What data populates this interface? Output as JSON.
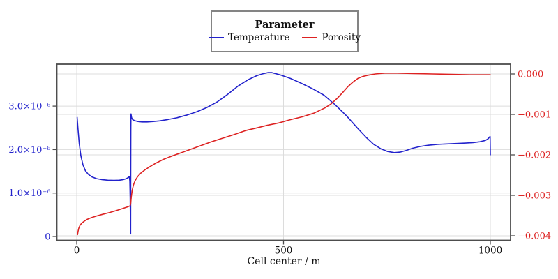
{
  "chart_data": {
    "type": "line",
    "xlabel": "Cell center / m",
    "grid": true,
    "legend": {
      "title": "Parameter",
      "position": "top-center",
      "entries": [
        {
          "label": "Temperature",
          "color": "#2222cc"
        },
        {
          "label": "Porosity",
          "color": "#dd2222"
        }
      ]
    },
    "x_axis": {
      "label": "Cell center / m",
      "range": [
        -48,
        1049
      ],
      "ticks": [
        {
          "value": 0,
          "label": "0"
        },
        {
          "value": 500,
          "label": "500"
        },
        {
          "value": 1000,
          "label": "1000"
        }
      ]
    },
    "left_axis": {
      "series": "Temperature",
      "color": "#2222cc",
      "range": [
        -1.2e-07,
        3.97e-06
      ],
      "ticks": [
        {
          "value": 0,
          "label": "0"
        },
        {
          "value": 1e-06,
          "label": "1.0×10⁻⁶"
        },
        {
          "value": 2e-06,
          "label": "2.0×10⁻⁶"
        },
        {
          "value": 3e-06,
          "label": "3.0×10⁻⁶"
        }
      ]
    },
    "right_axis": {
      "series": "Porosity",
      "color": "#dd2222",
      "range": [
        -0.00411,
        0.00024
      ],
      "ticks": [
        {
          "value": 0.0,
          "label": "0.000"
        },
        {
          "value": -0.001,
          "label": "−0.001"
        },
        {
          "value": -0.002,
          "label": "−0.002"
        },
        {
          "value": -0.003,
          "label": "−0.003"
        },
        {
          "value": -0.004,
          "label": "−0.004"
        }
      ]
    },
    "series": [
      {
        "name": "Temperature",
        "axis": "left",
        "color": "#2222cc",
        "points": [
          [
            1,
            2.74e-06
          ],
          [
            3,
            2.48e-06
          ],
          [
            6,
            2.14e-06
          ],
          [
            10,
            1.86e-06
          ],
          [
            15,
            1.65e-06
          ],
          [
            21,
            1.51e-06
          ],
          [
            28,
            1.43e-06
          ],
          [
            37,
            1.37e-06
          ],
          [
            48,
            1.33e-06
          ],
          [
            60,
            1.31e-06
          ],
          [
            75,
            1.295e-06
          ],
          [
            90,
            1.29e-06
          ],
          [
            103,
            1.295e-06
          ],
          [
            113,
            1.31e-06
          ],
          [
            120,
            1.33e-06
          ],
          [
            125,
            1.36e-06
          ],
          [
            127,
            1.375e-06
          ],
          [
            128.3,
            1.28e-06
          ],
          [
            129.2,
            9e-07
          ],
          [
            129.7,
            3.5e-07
          ],
          [
            130,
            6e-08
          ],
          [
            130.3,
            6e-08
          ],
          [
            130.6,
            1.2e-06
          ],
          [
            130.9,
            2.5e-06
          ],
          [
            131.2,
            2.82e-06
          ],
          [
            132.5,
            2.74e-06
          ],
          [
            135,
            2.69e-06
          ],
          [
            140,
            2.665e-06
          ],
          [
            148,
            2.645e-06
          ],
          [
            158,
            2.635e-06
          ],
          [
            170,
            2.635e-06
          ],
          [
            185,
            2.645e-06
          ],
          [
            200,
            2.66e-06
          ],
          [
            220,
            2.69e-06
          ],
          [
            242,
            2.73e-06
          ],
          [
            265,
            2.79e-06
          ],
          [
            290,
            2.87e-06
          ],
          [
            315,
            2.97e-06
          ],
          [
            340,
            3.1e-06
          ],
          [
            365,
            3.27e-06
          ],
          [
            390,
            3.46e-06
          ],
          [
            415,
            3.61e-06
          ],
          [
            435,
            3.7e-06
          ],
          [
            450,
            3.745e-06
          ],
          [
            462,
            3.77e-06
          ],
          [
            472,
            3.77e-06
          ],
          [
            482,
            3.745e-06
          ],
          [
            495,
            3.71e-06
          ],
          [
            517,
            3.635e-06
          ],
          [
            542,
            3.53e-06
          ],
          [
            570,
            3.4e-06
          ],
          [
            598,
            3.25e-06
          ],
          [
            625,
            3.03e-06
          ],
          [
            652,
            2.78e-06
          ],
          [
            678,
            2.5e-06
          ],
          [
            700,
            2.28e-06
          ],
          [
            718,
            2.12e-06
          ],
          [
            735,
            2.02e-06
          ],
          [
            752,
            1.955e-06
          ],
          [
            768,
            1.93e-06
          ],
          [
            782,
            1.94e-06
          ],
          [
            797,
            1.98e-06
          ],
          [
            812,
            2.03e-06
          ],
          [
            830,
            2.07e-06
          ],
          [
            850,
            2.1e-06
          ],
          [
            872,
            2.12e-06
          ],
          [
            895,
            2.13e-06
          ],
          [
            918,
            2.14e-06
          ],
          [
            940,
            2.15e-06
          ],
          [
            958,
            2.16e-06
          ],
          [
            975,
            2.18e-06
          ],
          [
            988,
            2.21e-06
          ],
          [
            995,
            2.25e-06
          ],
          [
            998,
            2.29e-06
          ],
          [
            999.5,
            2.3e-06
          ],
          [
            1000,
            1.88e-06
          ]
        ]
      },
      {
        "name": "Porosity",
        "axis": "right",
        "color": "#dd2222",
        "points": [
          [
            2,
            -0.00397
          ],
          [
            3,
            -0.0039
          ],
          [
            5,
            -0.00381
          ],
          [
            8,
            -0.00374
          ],
          [
            12,
            -0.00369
          ],
          [
            18,
            -0.00364
          ],
          [
            26,
            -0.00359
          ],
          [
            36,
            -0.00355
          ],
          [
            48,
            -0.00351
          ],
          [
            62,
            -0.00347
          ],
          [
            78,
            -0.00343
          ],
          [
            95,
            -0.00338
          ],
          [
            110,
            -0.00333
          ],
          [
            122,
            -0.00329
          ],
          [
            129,
            -0.00326
          ],
          [
            130.5,
            -0.0032
          ],
          [
            132,
            -0.00303
          ],
          [
            134,
            -0.00288
          ],
          [
            137,
            -0.00275
          ],
          [
            141,
            -0.00264
          ],
          [
            147,
            -0.00254
          ],
          [
            155,
            -0.00245
          ],
          [
            165,
            -0.00237
          ],
          [
            177,
            -0.00229
          ],
          [
            192,
            -0.0022
          ],
          [
            210,
            -0.00211
          ],
          [
            230,
            -0.00203
          ],
          [
            252,
            -0.00195
          ],
          [
            276,
            -0.00186
          ],
          [
            300,
            -0.00177
          ],
          [
            325,
            -0.00168
          ],
          [
            352,
            -0.00159
          ],
          [
            380,
            -0.0015
          ],
          [
            408,
            -0.0014
          ],
          [
            433,
            -0.00134
          ],
          [
            460,
            -0.00127
          ],
          [
            489,
            -0.00121
          ],
          [
            517,
            -0.00113
          ],
          [
            545,
            -0.00106
          ],
          [
            573,
            -0.00097
          ],
          [
            600,
            -0.00084
          ],
          [
            615,
            -0.00074
          ],
          [
            629,
            -0.00061
          ],
          [
            643,
            -0.00046
          ],
          [
            656,
            -0.00031
          ],
          [
            668,
            -0.0002
          ],
          [
            680,
            -0.00011
          ],
          [
            692,
            -6e-05
          ],
          [
            705,
            -3e-05
          ],
          [
            722,
            0.0
          ],
          [
            745,
            2e-05
          ],
          [
            775,
            2e-05
          ],
          [
            815,
            1e-05
          ],
          [
            860,
            0.0
          ],
          [
            905,
            -1e-05
          ],
          [
            950,
            -2e-05
          ],
          [
            1000,
            -2e-05
          ]
        ]
      }
    ]
  },
  "style": {
    "frame_color": "#4d4d4d",
    "grid_color": "#dcdcdc",
    "tick_color": "#4d4d4d",
    "text_color": "#111111",
    "background": "#ffffff"
  }
}
